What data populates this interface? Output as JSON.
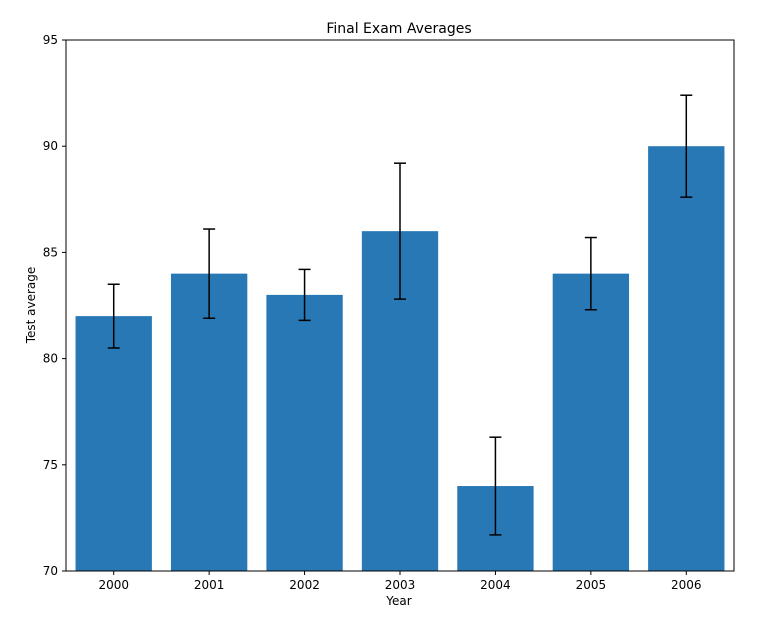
{
  "chart_data": {
    "type": "bar",
    "title": "Final Exam Averages",
    "xlabel": "Year",
    "ylabel": "Test average",
    "categories": [
      "2000",
      "2001",
      "2002",
      "2003",
      "2004",
      "2005",
      "2006"
    ],
    "values": [
      82,
      84,
      83,
      86,
      74,
      84,
      90
    ],
    "error_low": [
      80.5,
      81.9,
      81.8,
      82.8,
      71.7,
      82.3,
      87.6
    ],
    "error_high": [
      83.5,
      86.1,
      84.2,
      89.2,
      76.3,
      85.7,
      92.4
    ],
    "ylim": [
      70,
      95
    ],
    "yticks": [
      70,
      75,
      80,
      85,
      90,
      95
    ],
    "grid": false,
    "legend": "none",
    "bar_color": "#2878b5",
    "error_color": "#000000"
  }
}
